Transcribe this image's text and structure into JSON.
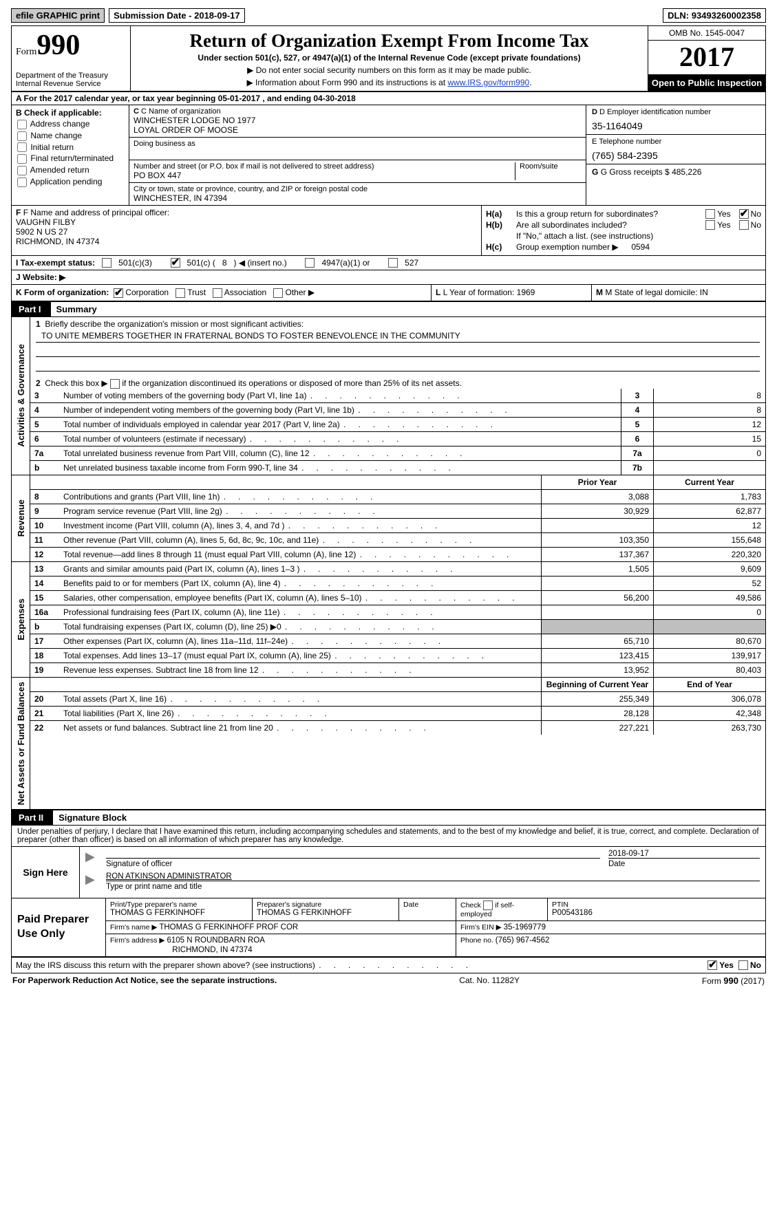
{
  "topbar": {
    "efile": "efile GRAPHIC print",
    "sub_date_label": "Submission Date - ",
    "sub_date": "2018-09-17",
    "dln_label": "DLN: ",
    "dln": "93493260002358"
  },
  "header": {
    "form_small": "Form",
    "form_big": "990",
    "dept1": "Department of the Treasury",
    "dept2": "Internal Revenue Service",
    "title": "Return of Organization Exempt From Income Tax",
    "sub1": "Under section 501(c), 527, or 4947(a)(1) of the Internal Revenue Code (except private foundations)",
    "sub2a": "▶ Do not enter social security numbers on this form as it may be made public.",
    "sub2b": "▶ Information about Form 990 and its instructions is at ",
    "sub2b_link": "www.IRS.gov/form990",
    "omb": "OMB No. 1545-0047",
    "year": "2017",
    "open_pub": "Open to Public Inspection"
  },
  "row_a": "A  For the 2017 calendar year, or tax year beginning 05-01-2017   , and ending 04-30-2018",
  "col_b": {
    "hdr": "B Check if applicable:",
    "items": [
      "Address change",
      "Name change",
      "Initial return",
      "Final return/terminated",
      "Amended return",
      "Application pending"
    ]
  },
  "col_c": {
    "name_label": "C Name of organization",
    "name1": "WINCHESTER LODGE NO 1977",
    "name2": "LOYAL ORDER OF MOOSE",
    "dba_label": "Doing business as",
    "addr_label": "Number and street (or P.O. box if mail is not delivered to street address)",
    "room_label": "Room/suite",
    "addr": "PO BOX 447",
    "city_label": "City or town, state or province, country, and ZIP or foreign postal code",
    "city": "WINCHESTER, IN  47394"
  },
  "col_d": {
    "d_label": "D Employer identification number",
    "ein": "35-1164049",
    "e_label": "E Telephone number",
    "phone": "(765) 584-2395",
    "g_label": "G Gross receipts $ ",
    "gross": "485,226"
  },
  "col_f": {
    "label": "F Name and address of principal officer:",
    "l1": "VAUGHN FILBY",
    "l2": "5902 N US 27",
    "l3": "RICHMOND, IN  47374"
  },
  "col_h": {
    "ha_label": "H(a)",
    "ha_text": "Is this a group return for subordinates?",
    "hb_label": "H(b)",
    "hb_text": "Are all subordinates included?",
    "yes": "Yes",
    "no": "No",
    "hb_note": "If \"No,\" attach a list. (see instructions)",
    "hc_label": "H(c)",
    "hc_text": "Group exemption number ▶",
    "hc_val": "0594"
  },
  "row_i": {
    "label": "I   Tax-exempt status:",
    "o1": "501(c)(3)",
    "o2a": "501(c) ( ",
    "o2b": "8",
    "o2c": " ) ◀ (insert no.)",
    "o3": "4947(a)(1) or",
    "o4": "527"
  },
  "row_j": {
    "label": "J   Website: ▶"
  },
  "row_klm": {
    "k_label": "K Form of organization:",
    "k_opts": [
      "Corporation",
      "Trust",
      "Association",
      "Other ▶"
    ],
    "l_label": "L Year of formation: ",
    "l_val": "1969",
    "m_label": "M State of legal domicile: ",
    "m_val": "IN"
  },
  "parts": {
    "p1_tag": "Part I",
    "p1_title": "Summary",
    "p2_tag": "Part II",
    "p2_title": "Signature Block"
  },
  "sides": {
    "gov": "Activities & Governance",
    "rev": "Revenue",
    "exp": "Expenses",
    "net": "Net Assets or Fund Balances"
  },
  "p1": {
    "l1_label": "1",
    "l1_text": "Briefly describe the organization's mission or most significant activities:",
    "l1_val": "TO UNITE MEMBERS TOGETHER IN FRATERNAL BONDS TO FOSTER BENEVOLENCE IN THE COMMUNITY",
    "l2_label": "2",
    "l2_text_a": "Check this box ▶ ",
    "l2_text_b": " if the organization discontinued its operations or disposed of more than 25% of its net assets."
  },
  "gov_rows": [
    {
      "n": "3",
      "d": "Number of voting members of the governing body (Part VI, line 1a)",
      "box": "3",
      "v": "8"
    },
    {
      "n": "4",
      "d": "Number of independent voting members of the governing body (Part VI, line 1b)",
      "box": "4",
      "v": "8"
    },
    {
      "n": "5",
      "d": "Total number of individuals employed in calendar year 2017 (Part V, line 2a)",
      "box": "5",
      "v": "12"
    },
    {
      "n": "6",
      "d": "Total number of volunteers (estimate if necessary)",
      "box": "6",
      "v": "15"
    },
    {
      "n": "7a",
      "d": "Total unrelated business revenue from Part VIII, column (C), line 12",
      "box": "7a",
      "v": "0"
    },
    {
      "n": "b",
      "d": "Net unrelated business taxable income from Form 990-T, line 34",
      "box": "7b",
      "v": ""
    }
  ],
  "two_col_hdr": {
    "prior": "Prior Year",
    "current": "Current Year"
  },
  "rev_rows": [
    {
      "n": "8",
      "d": "Contributions and grants (Part VIII, line 1h)",
      "p": "3,088",
      "c": "1,783"
    },
    {
      "n": "9",
      "d": "Program service revenue (Part VIII, line 2g)",
      "p": "30,929",
      "c": "62,877"
    },
    {
      "n": "10",
      "d": "Investment income (Part VIII, column (A), lines 3, 4, and 7d )",
      "p": "",
      "c": "12"
    },
    {
      "n": "11",
      "d": "Other revenue (Part VIII, column (A), lines 5, 6d, 8c, 9c, 10c, and 11e)",
      "p": "103,350",
      "c": "155,648"
    },
    {
      "n": "12",
      "d": "Total revenue—add lines 8 through 11 (must equal Part VIII, column (A), line 12)",
      "p": "137,367",
      "c": "220,320"
    }
  ],
  "exp_rows": [
    {
      "n": "13",
      "d": "Grants and similar amounts paid (Part IX, column (A), lines 1–3 )",
      "p": "1,505",
      "c": "9,609"
    },
    {
      "n": "14",
      "d": "Benefits paid to or for members (Part IX, column (A), line 4)",
      "p": "",
      "c": "52"
    },
    {
      "n": "15",
      "d": "Salaries, other compensation, employee benefits (Part IX, column (A), lines 5–10)",
      "p": "56,200",
      "c": "49,586"
    },
    {
      "n": "16a",
      "d": "Professional fundraising fees (Part IX, column (A), line 11e)",
      "p": "",
      "c": "0"
    },
    {
      "n": "b",
      "d": "Total fundraising expenses (Part IX, column (D), line 25) ▶0",
      "p": "__SHADE__",
      "c": "__SHADE__"
    },
    {
      "n": "17",
      "d": "Other expenses (Part IX, column (A), lines 11a–11d, 11f–24e)",
      "p": "65,710",
      "c": "80,670"
    },
    {
      "n": "18",
      "d": "Total expenses. Add lines 13–17 (must equal Part IX, column (A), line 25)",
      "p": "123,415",
      "c": "139,917"
    },
    {
      "n": "19",
      "d": "Revenue less expenses. Subtract line 18 from line 12",
      "p": "13,952",
      "c": "80,403"
    }
  ],
  "net_hdr": {
    "begin": "Beginning of Current Year",
    "end": "End of Year"
  },
  "net_rows": [
    {
      "n": "20",
      "d": "Total assets (Part X, line 16)",
      "p": "255,349",
      "c": "306,078"
    },
    {
      "n": "21",
      "d": "Total liabilities (Part X, line 26)",
      "p": "28,128",
      "c": "42,348"
    },
    {
      "n": "22",
      "d": "Net assets or fund balances. Subtract line 21 from line 20",
      "p": "227,221",
      "c": "263,730"
    }
  ],
  "sig": {
    "decl": "Under penalties of perjury, I declare that I have examined this return, including accompanying schedules and statements, and to the best of my knowledge and belief, it is true, correct, and complete. Declaration of preparer (other than officer) is based on all information of which preparer has any knowledge.",
    "sign_here": "Sign Here",
    "sig_of_officer": "Signature of officer",
    "date_label": "Date",
    "date_val": "2018-09-17",
    "name_title": "RON ATKINSON ADMINISTRATOR",
    "name_title_label": "Type or print name and title"
  },
  "prep": {
    "left": "Paid Preparer Use Only",
    "r1c1_label": "Print/Type preparer's name",
    "r1c1_val": "THOMAS G FERKINHOFF",
    "r1c2_label": "Preparer's signature",
    "r1c2_val": "THOMAS G FERKINHOFF",
    "r1c3_label": "Date",
    "r1c4a": "Check",
    "r1c4b": "if self-employed",
    "r1c5_label": "PTIN",
    "r1c5_val": "P00543186",
    "r2c1_label": "Firm's name     ▶ ",
    "r2c1_val": "THOMAS G FERKINHOFF PROF COR",
    "r2c2_label": "Firm's EIN ▶ ",
    "r2c2_val": "35-1969779",
    "r3c1_label": "Firm's address ▶ ",
    "r3c1_val1": "6105 N ROUNDBARN ROA",
    "r3c1_val2": "RICHMOND, IN  47374",
    "r3c2_label": "Phone no. ",
    "r3c2_val": "(765) 967-4562"
  },
  "discuss": {
    "text": "May the IRS discuss this return with the preparer shown above? (see instructions)",
    "yes": "Yes",
    "no": "No"
  },
  "footer": {
    "l": "For Paperwork Reduction Act Notice, see the separate instructions.",
    "c": "Cat. No. 11282Y",
    "r_a": "Form ",
    "r_b": "990",
    "r_c": " (2017)"
  }
}
